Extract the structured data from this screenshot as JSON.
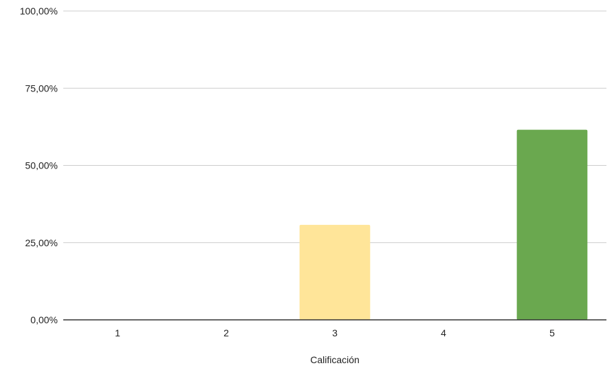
{
  "chart_data": {
    "type": "bar",
    "categories": [
      "1",
      "2",
      "3",
      "4",
      "5"
    ],
    "values": [
      0,
      0,
      30.77,
      0,
      61.54
    ],
    "bar_colors": [
      "#f4cccc",
      "#fce5cd",
      "#ffe599",
      "#b6d7a8",
      "#6aa84f"
    ],
    "xlabel": "Calificación",
    "ylabel": "",
    "ylim": [
      0,
      100
    ],
    "yticks": [
      0,
      25,
      50,
      75,
      100
    ],
    "ytick_labels": [
      "0,00%",
      "25,00%",
      "50,00%",
      "75,00%",
      "100,00%"
    ],
    "grid": true,
    "gridline_color": "#cccccc",
    "baseline_color": "#333333",
    "legend": "none"
  }
}
